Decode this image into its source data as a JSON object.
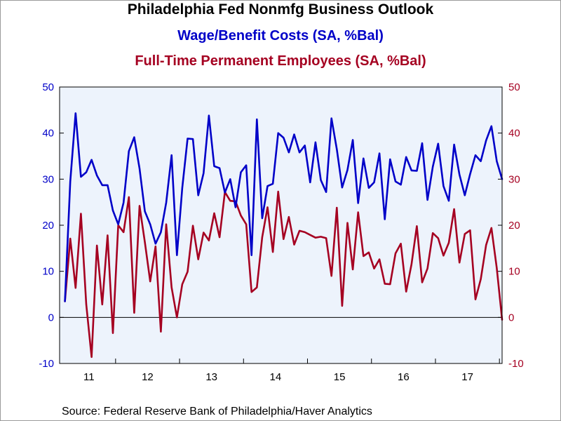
{
  "header": {
    "title": "Philadelphia Fed Nonmfg Business Outlook",
    "subtitle1": "Wage/Benefit Costs (SA, %Bal)",
    "subtitle2": "Full-Time Permanent Employees (SA, %Bal)"
  },
  "footer": {
    "source": "Source:  Federal Reserve Bank of Philadelphia/Haver Analytics"
  },
  "colors": {
    "series1": "#0000c8",
    "series2": "#a50021",
    "axis_left_labels": "#0000c8",
    "axis_right_labels": "#a50021",
    "plot_background": "#edf3fc"
  },
  "chart_data": {
    "type": "line",
    "x_unit": "month",
    "x_start": "2011-03",
    "x_end": "2017-12",
    "x_tick_labels": [
      "11",
      "12",
      "13",
      "14",
      "15",
      "16",
      "17"
    ],
    "yticks": [
      -10,
      0,
      10,
      20,
      30,
      40,
      50
    ],
    "ylim": [
      -10,
      50
    ],
    "y2lim": [
      -10,
      50
    ],
    "zero_line": true,
    "grid": false,
    "series": [
      {
        "name": "Wage/Benefit Costs (SA, %Bal)",
        "axis": "left",
        "values": [
          3.5,
          29.5,
          44.3,
          30.5,
          31.5,
          34.2,
          30.8,
          28.7,
          28.7,
          23.2,
          20.2,
          24.9,
          36.1,
          39.1,
          32.3,
          23.0,
          20.2,
          16.0,
          18.5,
          24.9,
          35.2,
          13.5,
          28.1,
          38.8,
          38.7,
          26.5,
          31.3,
          43.8,
          32.8,
          32.4,
          27.1,
          30.0,
          23.9,
          31.5,
          33.0,
          13.5,
          43.0,
          21.5,
          28.5,
          29.0,
          40.0,
          39.0,
          35.8,
          39.7,
          35.8,
          37.3,
          29.3,
          38.0,
          29.8,
          27.2,
          43.2,
          36.5,
          28.2,
          32.0,
          38.5,
          24.8,
          34.5,
          28.1,
          29.3,
          35.6,
          21.3,
          34.3,
          29.5,
          28.8,
          34.8,
          31.9,
          31.8,
          37.8,
          25.5,
          32.7,
          37.7,
          28.5,
          25.3,
          37.5,
          31.0,
          26.5,
          31.1,
          35.2,
          33.9,
          38.4,
          41.5,
          33.9,
          30.0
        ]
      },
      {
        "name": "Full-Time Permanent Employees (SA, %Bal)",
        "axis": "right",
        "values": [
          3.5,
          17.1,
          6.4,
          22.5,
          2.8,
          -8.6,
          15.6,
          2.8,
          17.8,
          -3.4,
          20.0,
          18.5,
          26.1,
          1.0,
          24.2,
          16.3,
          7.8,
          15.4,
          -3.1,
          20.2,
          6.5,
          0.0,
          7.2,
          9.9,
          19.9,
          12.6,
          18.4,
          16.7,
          22.6,
          17.4,
          27.2,
          25.3,
          25.2,
          22.1,
          20.2,
          5.5,
          6.5,
          17.4,
          23.9,
          14.2,
          27.3,
          17.0,
          21.8,
          15.8,
          18.8,
          18.5,
          17.9,
          17.3,
          17.5,
          17.2,
          9.0,
          23.8,
          2.5,
          20.5,
          10.4,
          22.8,
          13.3,
          14.1,
          10.6,
          12.6,
          7.3,
          7.2,
          13.9,
          16.0,
          5.6,
          11.5,
          19.8,
          7.6,
          10.6,
          18.3,
          17.2,
          13.4,
          16.2,
          23.5,
          11.9,
          18.1,
          18.9,
          3.9,
          8.3,
          15.7,
          19.4,
          10.7,
          -0.5
        ]
      }
    ]
  }
}
